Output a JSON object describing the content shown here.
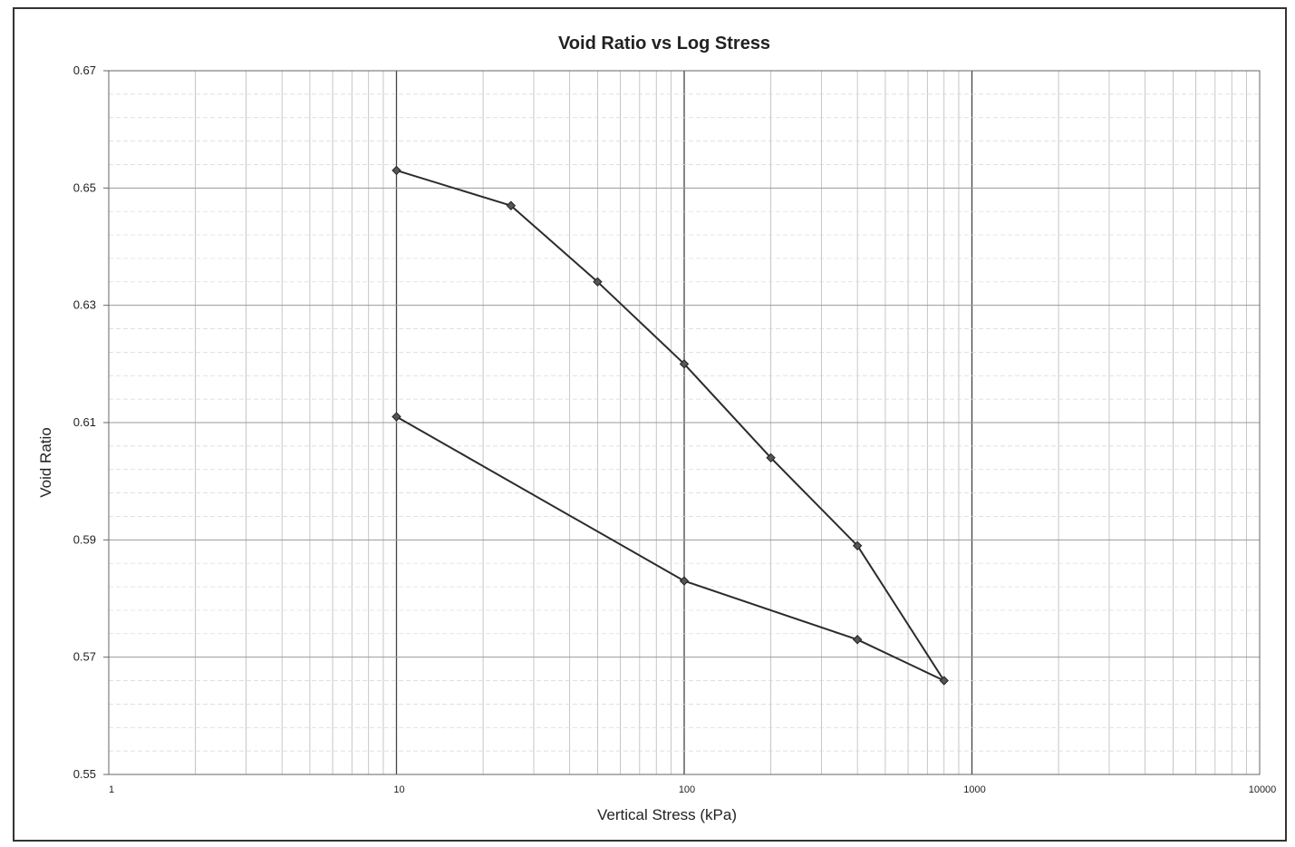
{
  "chart_data": {
    "type": "line",
    "title": "Void Ratio vs Log Stress",
    "xlabel": "Vertical Stress (kPa)",
    "ylabel": "Void Ratio",
    "x_scale": "log",
    "xlim": [
      1,
      10000
    ],
    "ylim": [
      0.55,
      0.67
    ],
    "x_ticks": [
      "1",
      "10",
      "100",
      "1000",
      "10000"
    ],
    "y_ticks": [
      "0.67",
      "0.65",
      "0.63",
      "0.61",
      "0.59",
      "0.57",
      "0.55"
    ],
    "grid": true,
    "legend": "none",
    "series": [
      {
        "values": [
          {
            "x": 10,
            "y": 0.653
          },
          {
            "x": 25,
            "y": 0.647
          },
          {
            "x": 50,
            "y": 0.634
          },
          {
            "x": 100,
            "y": 0.62
          },
          {
            "x": 200,
            "y": 0.604
          },
          {
            "x": 400,
            "y": 0.589
          },
          {
            "x": 800,
            "y": 0.566
          },
          {
            "x": 400,
            "y": 0.573
          },
          {
            "x": 100,
            "y": 0.583
          },
          {
            "x": 10,
            "y": 0.611
          }
        ]
      }
    ],
    "colors": {
      "line": "#2b2b2b",
      "marker": "#555555",
      "grid_minor": "#b8b8b8",
      "grid_major": "#444444",
      "axis": "#666666"
    }
  }
}
